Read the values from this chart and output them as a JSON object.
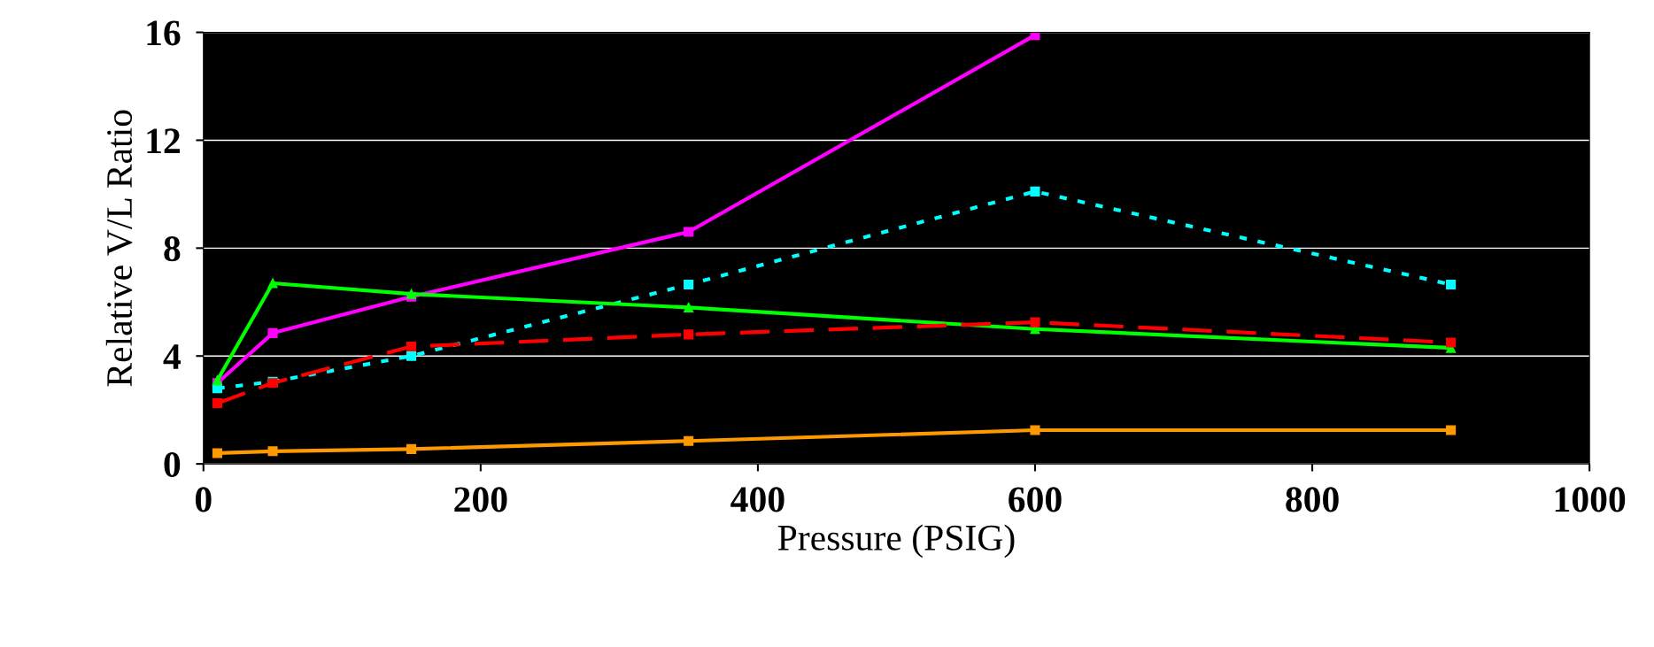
{
  "chart_data": {
    "type": "line",
    "xlabel": "Pressure (PSIG)",
    "ylabel": "Relative V/L Ratio",
    "x": [
      10,
      50,
      150,
      350,
      600,
      900
    ],
    "series": [
      {
        "color": "#ff00ff",
        "values": [
          3.0,
          4.85,
          6.2,
          8.6,
          15.9,
          null
        ],
        "marker": "square",
        "line_style": "solid"
      },
      {
        "color": "#00ffff",
        "values": [
          2.8,
          3.05,
          4.0,
          6.65,
          10.1,
          6.65
        ],
        "marker": "square",
        "line_style": "dotted"
      },
      {
        "color": "#00ff00",
        "values": [
          3.1,
          6.7,
          6.3,
          5.8,
          5.0,
          4.3
        ],
        "marker": "triangle",
        "line_style": "solid"
      },
      {
        "color": "#ff0000",
        "values": [
          2.25,
          3.0,
          4.35,
          4.8,
          5.25,
          4.5
        ],
        "marker": "square",
        "line_style": "dashed"
      },
      {
        "color": "#ff9900",
        "values": [
          0.4,
          0.47,
          0.55,
          0.85,
          1.25,
          1.25
        ],
        "marker": "square",
        "line_style": "solid"
      }
    ],
    "xlim": [
      0,
      1000
    ],
    "xticks": [
      0,
      200,
      400,
      600,
      800,
      1000
    ],
    "ylim": [
      0,
      16
    ],
    "yticks": [
      0,
      4,
      8,
      12,
      16
    ],
    "grid": "y",
    "legend": false
  }
}
